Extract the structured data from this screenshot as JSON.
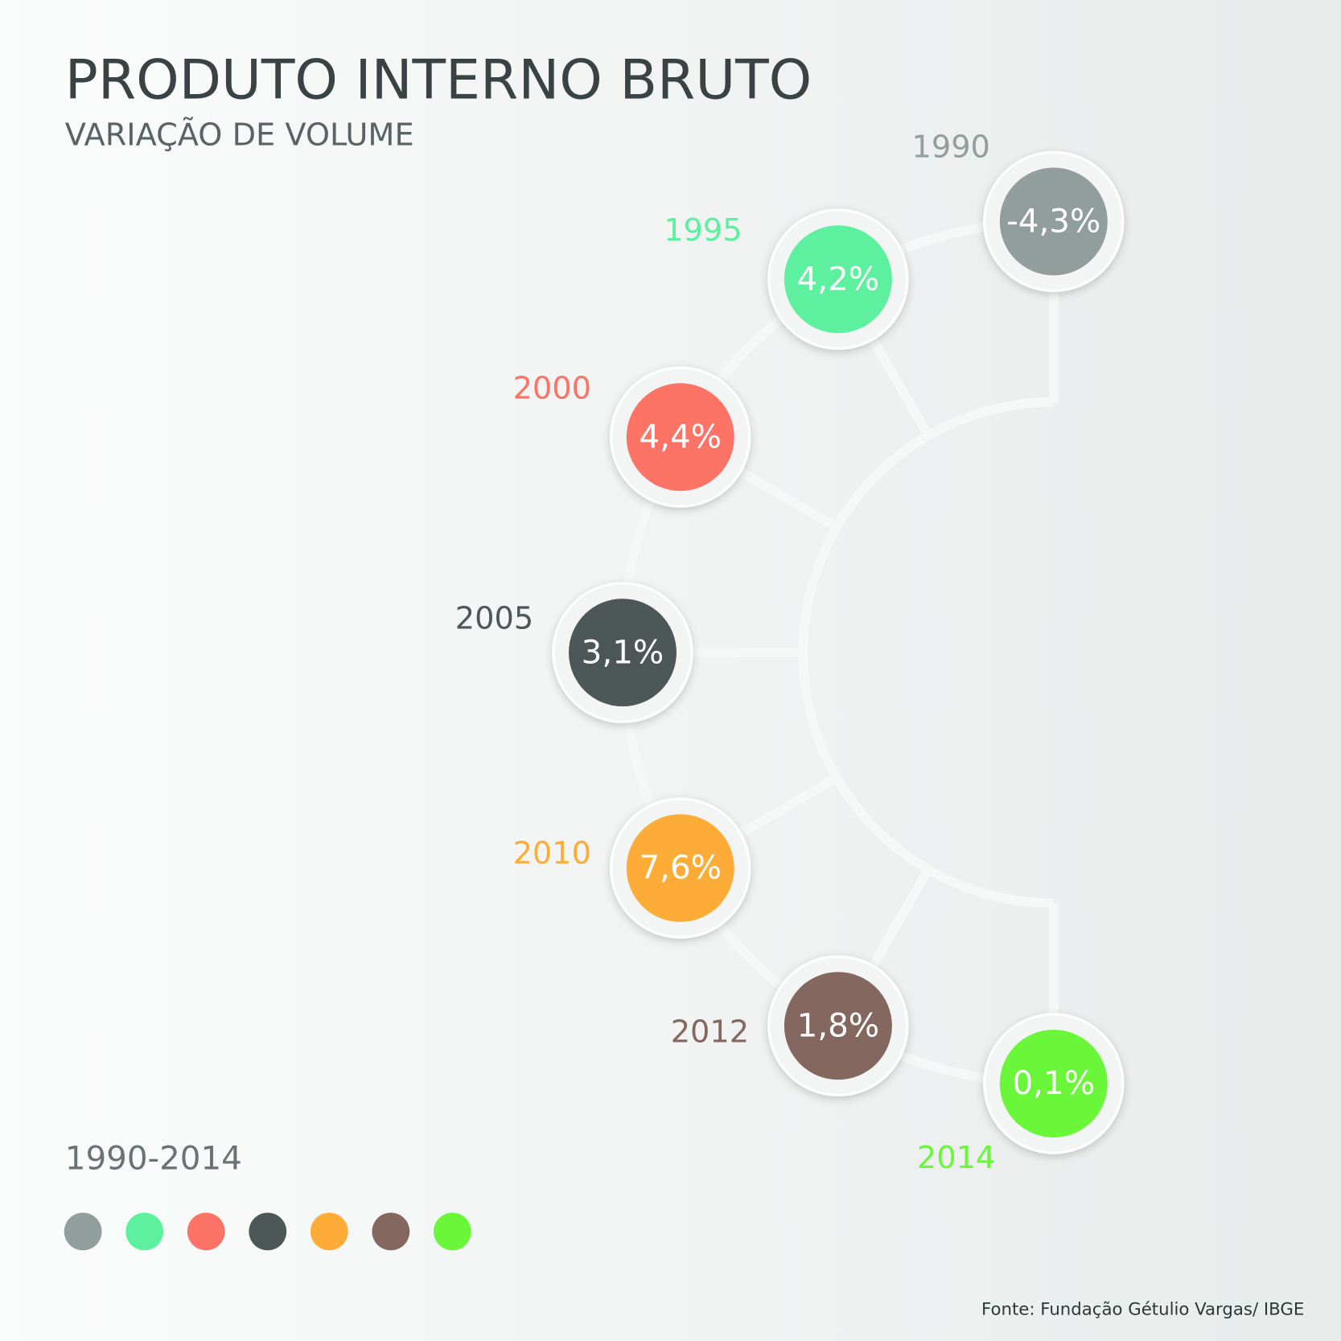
{
  "chart_data": {
    "type": "ring",
    "title": "PRODUTO INTERNO BRUTO",
    "subtitle": "VARIAÇÃO DE VOLUME",
    "period": "1990-2014",
    "source": "Fonte: Fundação Gétulio Vargas/ IBGE",
    "categories": [
      "1990",
      "1995",
      "2000",
      "2005",
      "2010",
      "2012",
      "2014"
    ],
    "values": [
      -4.3,
      4.2,
      4.4,
      3.1,
      7.6,
      1.8,
      0.1
    ],
    "value_labels": [
      "-4,3%",
      "4,2%",
      "4,4%",
      "3,1%",
      "7,6%",
      "1,8%",
      "0,1%"
    ],
    "colors": [
      "#919e9b",
      "#5cf09f",
      "#fd7365",
      "#4d5758",
      "#fdad37",
      "#84675f",
      "#6af73a"
    ]
  }
}
